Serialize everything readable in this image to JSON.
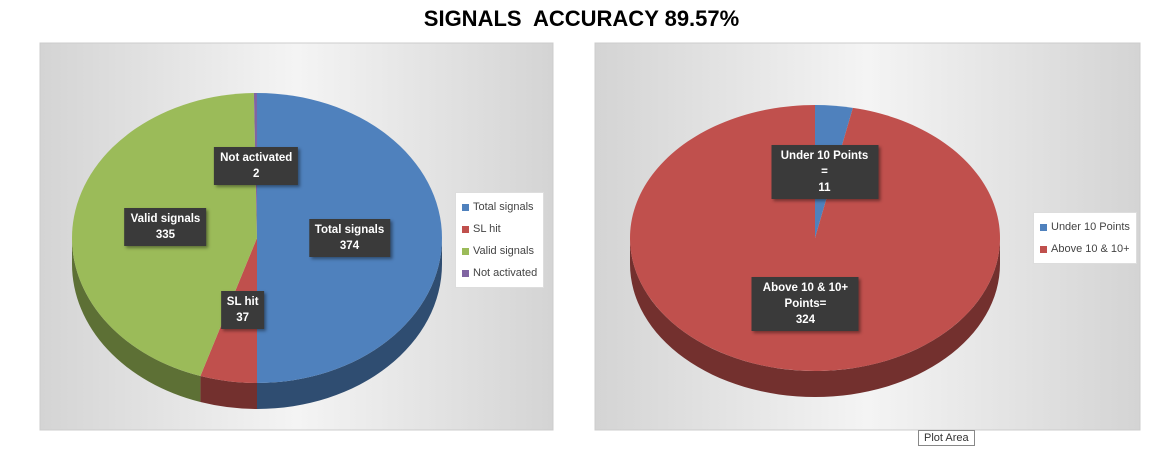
{
  "title": "SIGNALS  ACCURACY 89.57%",
  "tooltip": "Plot Area",
  "chart_data": [
    {
      "type": "pie",
      "categories": [
        "Total signals",
        "SL hit",
        "Valid signals",
        "Not activated"
      ],
      "values": [
        374,
        37,
        335,
        2
      ],
      "colors": [
        "#4f81bd",
        "#c0504d",
        "#9bbb59",
        "#8064a2"
      ],
      "legend": "right"
    },
    {
      "type": "pie",
      "categories": [
        "Under 10 Points",
        "Above 10 & 10+"
      ],
      "label_texts": [
        "Under 10 Points =",
        "Above 10 & 10+ Points="
      ],
      "values": [
        11,
        324
      ],
      "colors": [
        "#4f81bd",
        "#c0504d"
      ],
      "legend": "right"
    }
  ]
}
